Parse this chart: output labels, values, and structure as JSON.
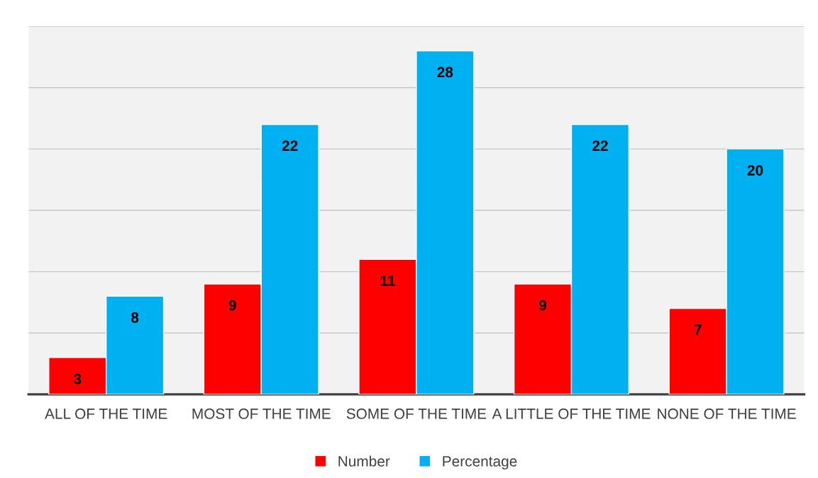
{
  "chart_data": {
    "type": "bar",
    "categories": [
      "ALL OF THE TIME",
      "MOST OF THE TIME",
      "SOME OF THE TIME",
      "A LITTLE OF THE TIME",
      "NONE OF THE TIME"
    ],
    "series": [
      {
        "name": "Number",
        "color": "#ff0000",
        "values": [
          3,
          9,
          11,
          9,
          7
        ]
      },
      {
        "name": "Percentage",
        "color": "#00b0f0",
        "values": [
          8,
          22,
          28,
          22,
          20
        ]
      }
    ],
    "ylim": [
      0,
      30
    ],
    "yticks": [
      {
        "value": 0,
        "label": null
      },
      {
        "value": 5,
        "label": null
      },
      {
        "value": 10,
        "label": null
      },
      {
        "value": 15,
        "label": null
      },
      {
        "value": 20,
        "label": null
      },
      {
        "value": 25,
        "label": null
      },
      {
        "value": 30,
        "label": null
      }
    ],
    "tick_labels": "x",
    "grid": "y",
    "legend": "bottom",
    "data_labels": true
  }
}
